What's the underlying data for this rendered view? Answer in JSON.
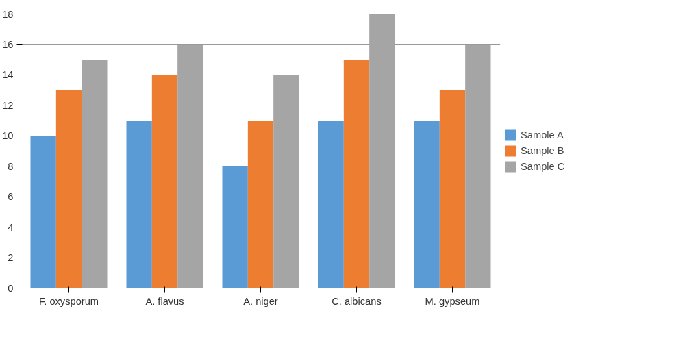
{
  "chart_data": {
    "type": "bar",
    "categories": [
      "F. oxysporum",
      "A. flavus",
      "A. niger",
      "C. albicans",
      "M. gypseum"
    ],
    "series": [
      {
        "name": "Samole A",
        "color": "#5b9bd5",
        "values": [
          10,
          11,
          8,
          11,
          11
        ]
      },
      {
        "name": "Sample B",
        "color": "#ed7d31",
        "values": [
          13,
          14,
          11,
          15,
          13
        ]
      },
      {
        "name": "Sample C",
        "color": "#a5a5a5",
        "values": [
          15,
          16,
          14,
          18,
          16
        ]
      }
    ],
    "ylim": [
      0,
      18
    ],
    "yticks": [
      0,
      2,
      4,
      6,
      8,
      10,
      12,
      14,
      16,
      18
    ],
    "grid": "y",
    "legend": "right"
  }
}
